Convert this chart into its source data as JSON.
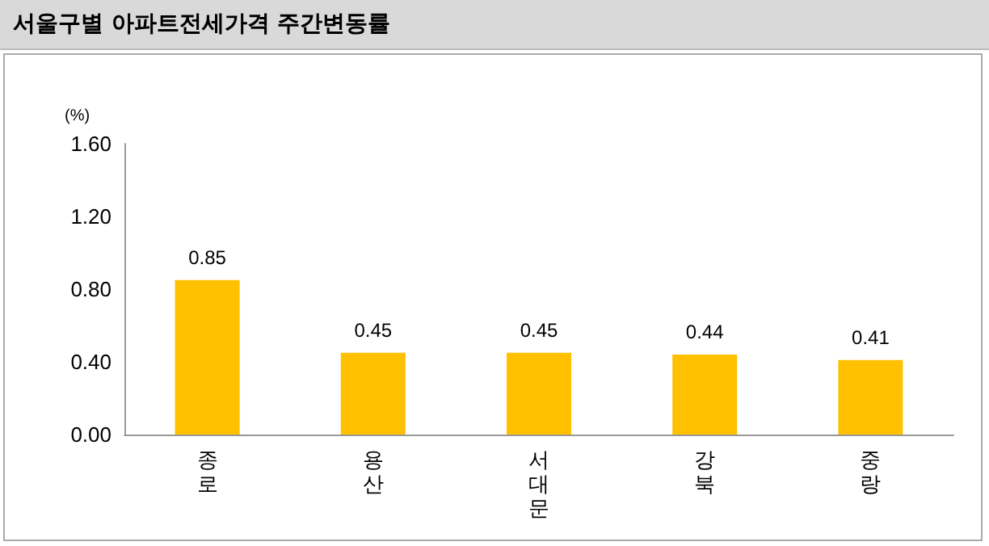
{
  "chart_data": {
    "type": "bar",
    "title": "서울구별 아파트전세가격 주간변동률",
    "ylabel": "(%)",
    "categories": [
      "종로",
      "용산",
      "서대문",
      "강북",
      "중랑"
    ],
    "values": [
      0.85,
      0.45,
      0.45,
      0.44,
      0.41
    ],
    "color": "#ffc000",
    "ylim": [
      0,
      1.6
    ],
    "yticks": [
      {
        "value": 0,
        "label": "0.00"
      },
      {
        "value": 0.4,
        "label": "0.40"
      },
      {
        "value": 0.8,
        "label": "0.80"
      },
      {
        "value": 1.2,
        "label": "1.20"
      },
      {
        "value": 1.6,
        "label": "1.60"
      }
    ],
    "grid": false,
    "data_labels": true
  }
}
